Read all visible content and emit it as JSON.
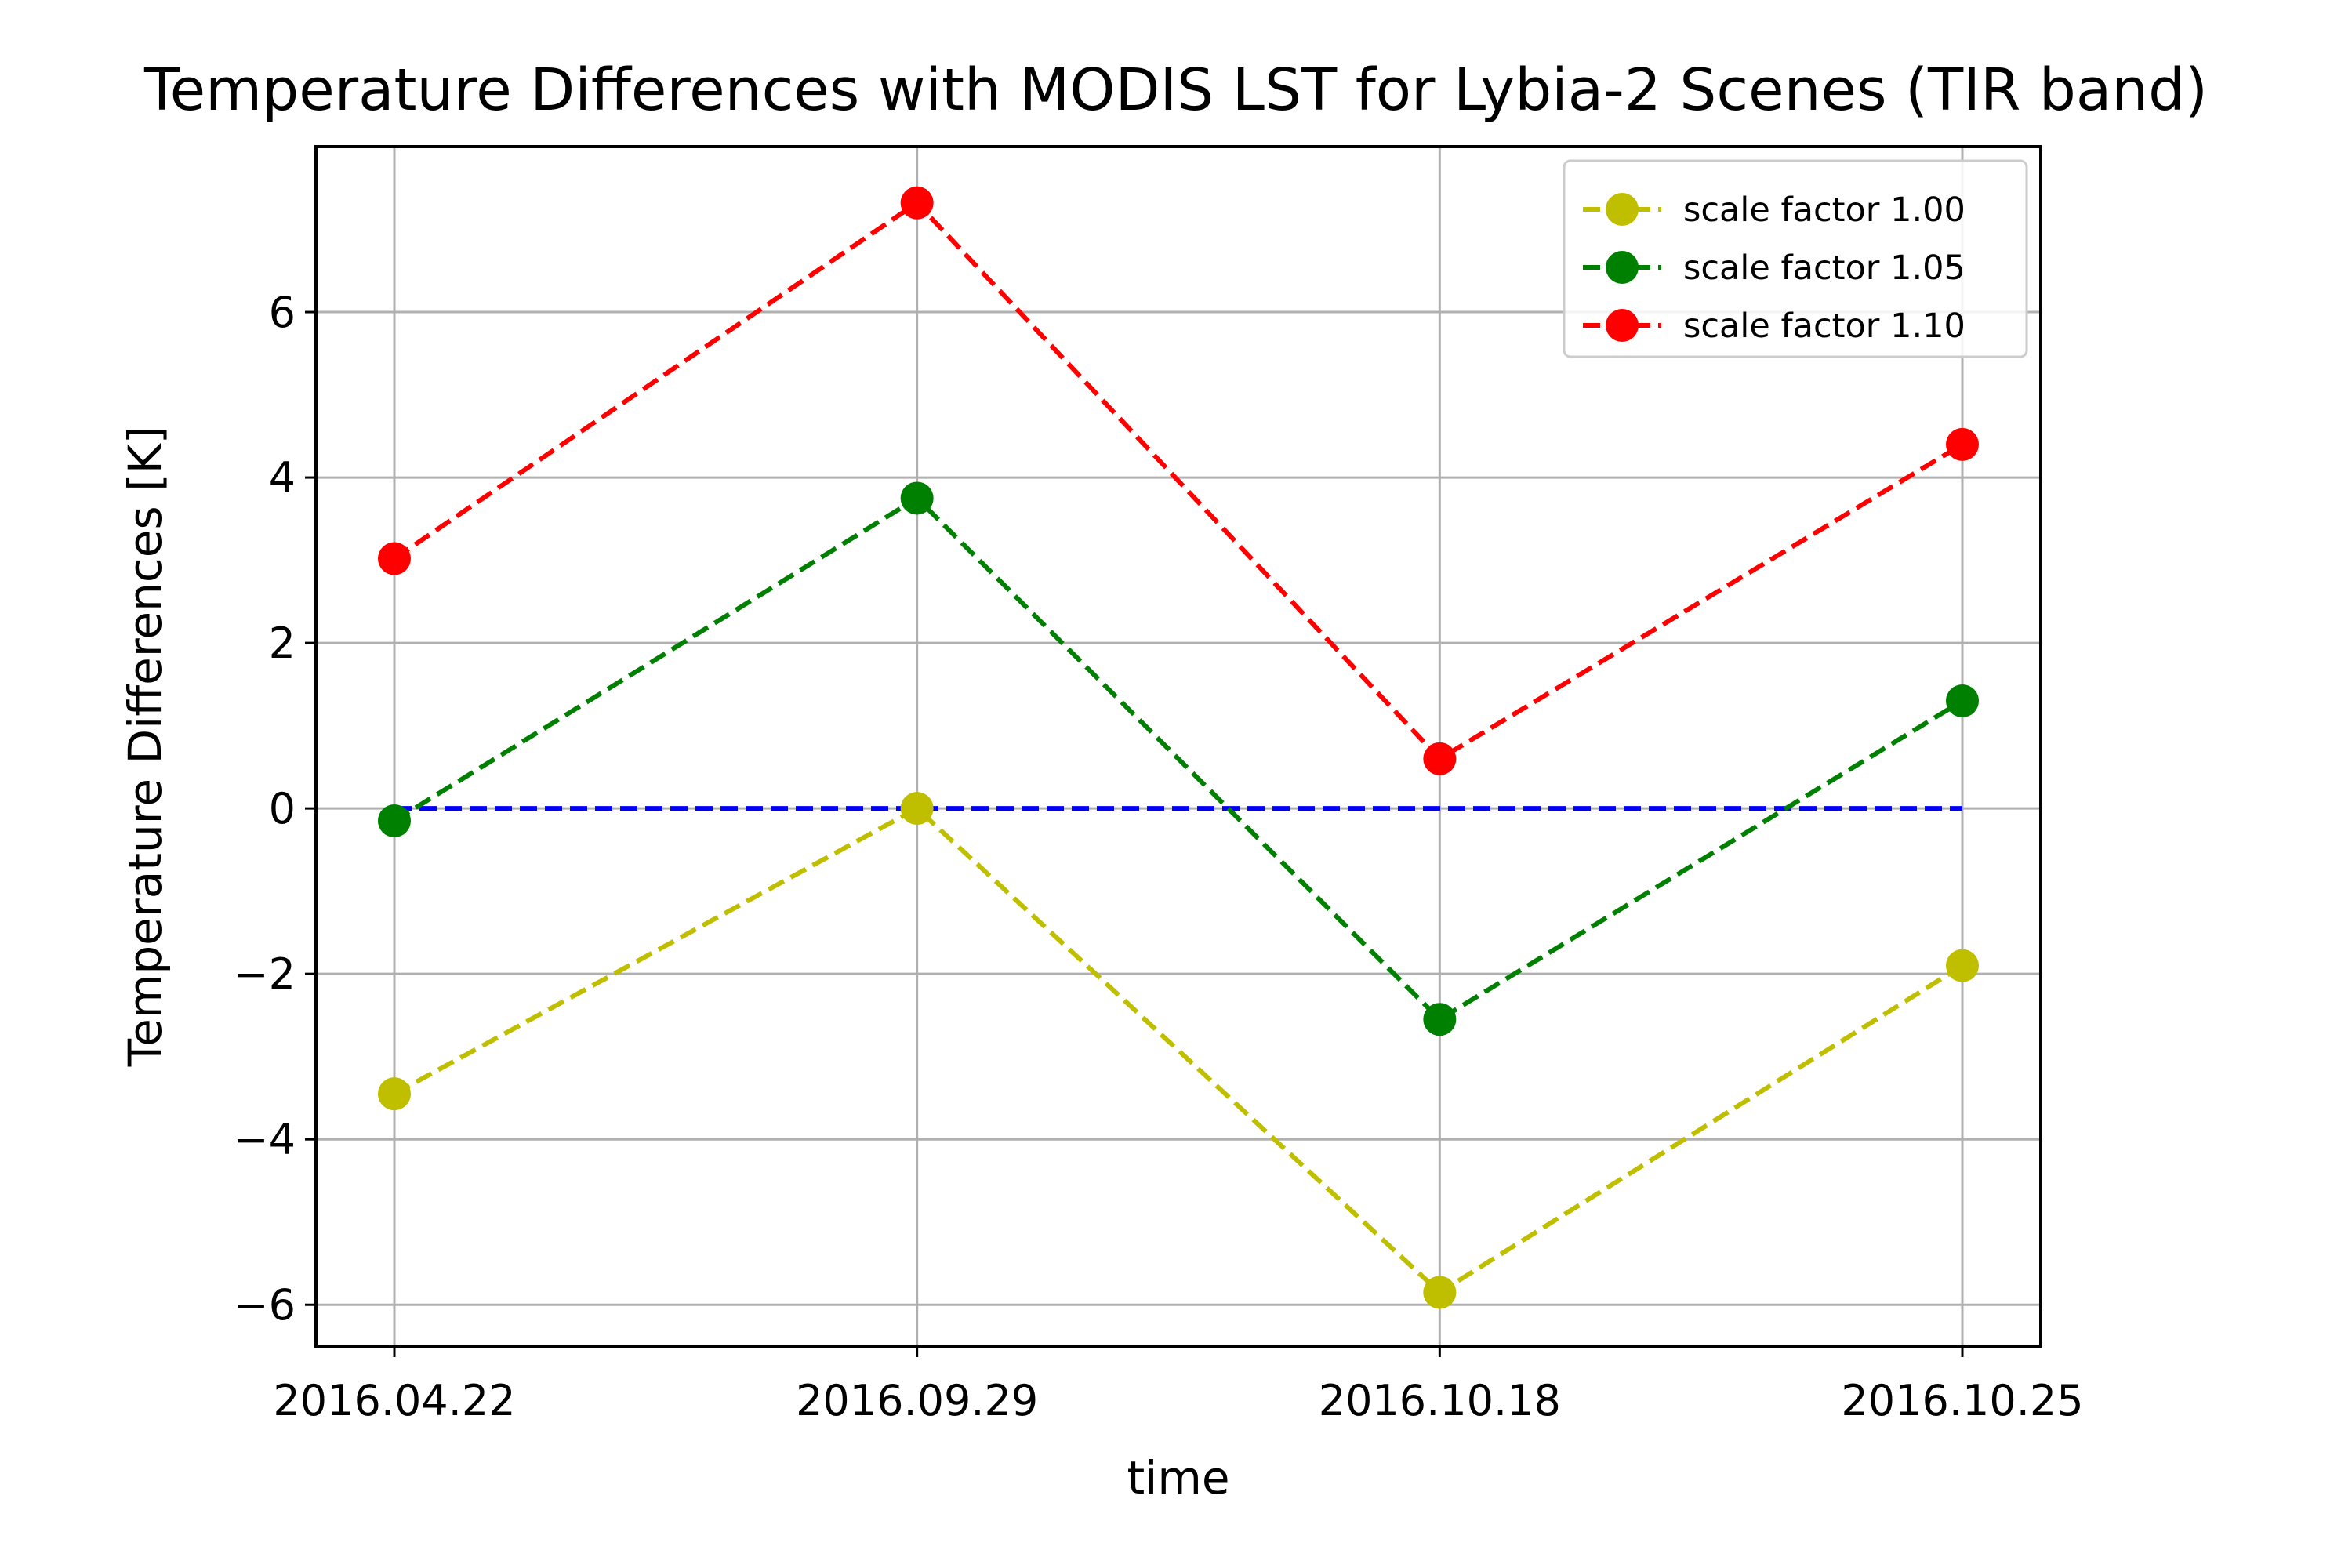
{
  "chart_data": {
    "type": "line",
    "title": "Temperature Differences with MODIS LST for Lybia-2 Scenes (TIR band)",
    "xlabel": "time",
    "ylabel": "Temperature Differences [K]",
    "categories": [
      "2016.04.22",
      "2016.09.29",
      "2016.10.18",
      "2016.10.25"
    ],
    "ylim": [
      -6.5,
      8.0
    ],
    "yticks": [
      -6,
      -4,
      -2,
      0,
      2,
      4,
      6
    ],
    "ytick_labels": [
      "−6",
      "−4",
      "−2",
      "0",
      "2",
      "4",
      "6"
    ],
    "grid": true,
    "legend_position": "top-right",
    "series": [
      {
        "name": "scale factor 1.00",
        "color": "#bfbf00",
        "line_style": "dashed",
        "marker": "circle",
        "values": [
          -3.45,
          0.0,
          -5.85,
          -1.9
        ]
      },
      {
        "name": "scale factor 1.05",
        "color": "#008000",
        "line_style": "dashed",
        "marker": "circle",
        "values": [
          -0.15,
          3.75,
          -2.55,
          1.3
        ]
      },
      {
        "name": "scale factor 1.10",
        "color": "#ff0000",
        "line_style": "dashed",
        "marker": "circle",
        "values": [
          3.02,
          7.32,
          0.6,
          4.4
        ]
      }
    ],
    "reference_line": {
      "color": "#0000ff",
      "line_style": "dashed",
      "values": [
        0,
        0,
        0,
        0
      ]
    }
  }
}
